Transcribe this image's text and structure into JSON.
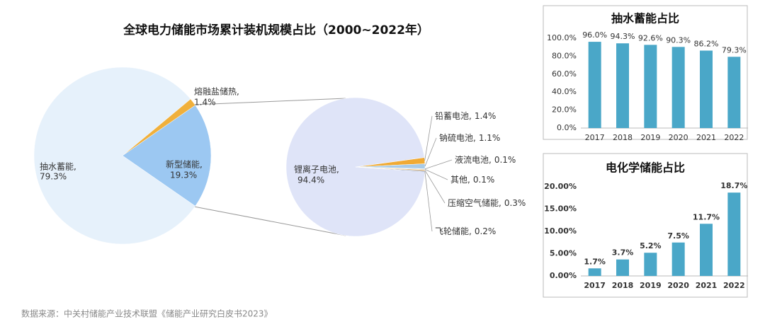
{
  "chart_data": [
    {
      "type": "pie",
      "title": "全球电力储能市场累计装机规模占比（2000~2022年）",
      "categories": [
        "抽水蓄能,",
        "熔融盐储热,",
        "新型储能,"
      ],
      "values": [
        79.3,
        1.4,
        19.3
      ],
      "value_labels": [
        "79.3%",
        "1.4%",
        "19.3%"
      ],
      "colors": [
        "#e6f1fb",
        "#f0b03c",
        "#9cc8f2"
      ]
    },
    {
      "type": "pie",
      "categories": [
        "锂离子电池,",
        "铅蓄电池,",
        "钠硫电池,",
        "液流电池,",
        "其他,",
        "压缩空气储能,",
        "飞轮储能,"
      ],
      "values": [
        94.4,
        1.4,
        1.1,
        0.1,
        0.1,
        0.3,
        0.2
      ],
      "value_labels": [
        "94.4%",
        "1.4%",
        "1.1%",
        "0.1%",
        "0.1%",
        "0.3%",
        "0.2%"
      ],
      "colors": [
        "#dfe4f8",
        "#f0aa34",
        "#a8cbe8",
        "#6f97cc",
        "#2f5f9e",
        "#f3c37a",
        "#6a7898"
      ]
    },
    {
      "type": "bar",
      "title": "抽水蓄能占比",
      "categories": [
        "2017",
        "2018",
        "2019",
        "2020",
        "2021",
        "2022"
      ],
      "values": [
        96.0,
        94.3,
        92.6,
        90.3,
        86.2,
        79.3
      ],
      "value_labels": [
        "96.0%",
        "94.3%",
        "92.6%",
        "90.3%",
        "86.2%",
        "79.3%"
      ],
      "color": "#4aa7c8",
      "ylim": [
        0,
        100
      ],
      "yticks": [
        {
          "value": 0,
          "label": "0.0%"
        },
        {
          "value": 20,
          "label": "20.0%"
        },
        {
          "value": 40,
          "label": "40.0%"
        },
        {
          "value": 60,
          "label": "60.0%"
        },
        {
          "value": 80,
          "label": "80.0%"
        },
        {
          "value": 100,
          "label": "100.0%"
        }
      ]
    },
    {
      "type": "bar",
      "title": "电化学储能占比",
      "categories": [
        "2017",
        "2018",
        "2019",
        "2020",
        "2021",
        "2022"
      ],
      "values": [
        1.7,
        3.7,
        5.2,
        7.5,
        11.7,
        18.7
      ],
      "value_labels": [
        "1.7%",
        "3.7%",
        "5.2%",
        "7.5%",
        "11.7%",
        "18.7%"
      ],
      "color": "#4aa7c8",
      "ylim": [
        0,
        20
      ],
      "yticks": [
        {
          "value": 0,
          "label": "0.00%"
        },
        {
          "value": 5,
          "label": "5.00%"
        },
        {
          "value": 10,
          "label": "10.00%"
        },
        {
          "value": 15,
          "label": "15.00%"
        },
        {
          "value": 20,
          "label": "20.00%"
        }
      ]
    }
  ],
  "source": "数据来源：中关村储能产业技术联盟《储能产业研究白皮书2023》"
}
